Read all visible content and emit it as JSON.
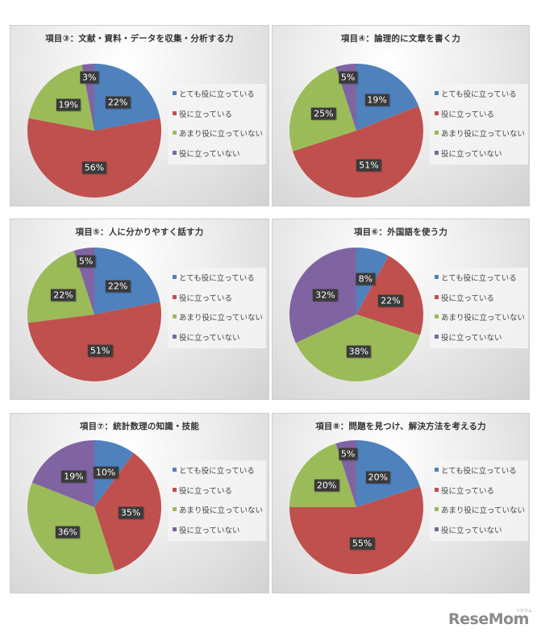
{
  "colors": {
    "very_useful": "#4f81bd",
    "useful": "#c0504d",
    "not_very_useful": "#9bbb59",
    "not_useful": "#8064a2"
  },
  "legend": [
    {
      "label": "とても役に立っている",
      "color": "#4f81bd"
    },
    {
      "label": "役に立っている",
      "color": "#c0504d"
    },
    {
      "label": "あまり役に立っていない",
      "color": "#9bbb59"
    },
    {
      "label": "役に立っていない",
      "color": "#8064a2"
    }
  ],
  "logo": {
    "text": "ReseMom",
    "kana": "リセマム"
  },
  "chart_data": [
    {
      "type": "pie",
      "title": "項目③：文献・資料・データを収集・分析する力",
      "categories": [
        "とても役に立っている",
        "役に立っている",
        "あまり役に立っていない",
        "役に立っていない"
      ],
      "values": [
        22,
        56,
        19,
        3
      ],
      "labels": [
        "22%",
        "56%",
        "19%",
        "3%"
      ],
      "legend_position": "right"
    },
    {
      "type": "pie",
      "title": "項目④：論理的に文章を書く力",
      "categories": [
        "とても役に立っている",
        "役に立っている",
        "あまり役に立っていない",
        "役に立っていない"
      ],
      "values": [
        19,
        51,
        25,
        5
      ],
      "labels": [
        "19%",
        "51%",
        "25%",
        "5%"
      ],
      "legend_position": "right"
    },
    {
      "type": "pie",
      "title": "項目⑤：人に分かりやすく話す力",
      "categories": [
        "とても役に立っている",
        "役に立っている",
        "あまり役に立っていない",
        "役に立っていない"
      ],
      "values": [
        22,
        51,
        22,
        5
      ],
      "labels": [
        "22%",
        "51%",
        "22%",
        "5%"
      ],
      "legend_position": "right"
    },
    {
      "type": "pie",
      "title": "項目⑥：外国語を使う力",
      "categories": [
        "とても役に立っている",
        "役に立っている",
        "あまり役に立っていない",
        "役に立っていない"
      ],
      "values": [
        8,
        22,
        38,
        32
      ],
      "labels": [
        "8%",
        "22%",
        "38%",
        "32%"
      ],
      "legend_position": "right"
    },
    {
      "type": "pie",
      "title": "項目⑦：統計数理の知識・技能",
      "categories": [
        "とても役に立っている",
        "役に立っている",
        "あまり役に立っていない",
        "役に立っていない"
      ],
      "values": [
        10,
        35,
        36,
        19
      ],
      "labels": [
        "10%",
        "35%",
        "36%",
        "19%"
      ],
      "legend_position": "right"
    },
    {
      "type": "pie",
      "title": "項目⑧：問題を見つけ、解決方法を考える力",
      "categories": [
        "とても役に立っている",
        "役に立っている",
        "あまり役に立っていない",
        "役に立っていない"
      ],
      "values": [
        20,
        55,
        20,
        5
      ],
      "labels": [
        "20%",
        "55%",
        "20%",
        "5%"
      ],
      "legend_position": "right"
    }
  ]
}
